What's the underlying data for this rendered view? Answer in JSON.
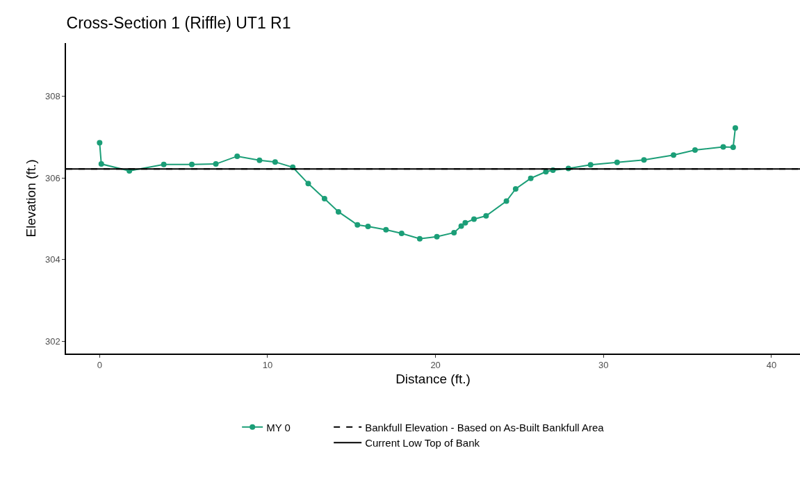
{
  "chart_data": {
    "type": "line",
    "title": "Cross-Section 1 (Riffle) UT1 R1",
    "xlabel": "Distance (ft.)",
    "ylabel": "Elevation (ft.)",
    "x": [
      0,
      0.1,
      1.77,
      3.82,
      5.49,
      6.92,
      8.19,
      9.52,
      10.45,
      11.5,
      12.42,
      13.39,
      14.22,
      15.35,
      15.98,
      17.05,
      17.98,
      19.06,
      20.08,
      21.1,
      21.53,
      21.77,
      22.29,
      23.01,
      24.22,
      24.77,
      25.67,
      26.57,
      26.99,
      27.91,
      29.23,
      30.81,
      32.41,
      34.17,
      35.45,
      37.13,
      37.72,
      37.85
    ],
    "series": [
      {
        "name": "MY 0",
        "color": "#1b9e77",
        "values": [
          306.86,
          306.34,
          306.17,
          306.33,
          306.33,
          306.34,
          306.53,
          306.43,
          306.39,
          306.26,
          305.86,
          305.49,
          305.17,
          304.85,
          304.81,
          304.73,
          304.64,
          304.51,
          304.56,
          304.66,
          304.82,
          304.9,
          304.99,
          305.07,
          305.43,
          305.73,
          305.99,
          306.15,
          306.19,
          306.23,
          306.32,
          306.38,
          306.44,
          306.56,
          306.68,
          306.76,
          306.75,
          307.22
        ]
      }
    ],
    "ref_lines": [
      {
        "axis": "y",
        "value": 306.22,
        "label": "Bankfull Elevation - Based on As-Built Bankfull Area",
        "color": "#000000",
        "line_style": "dashed"
      },
      {
        "axis": "y",
        "value": 306.22,
        "label": "Current Low Top of Bank",
        "color": "#000000",
        "line_style": "solid"
      }
    ],
    "xlim": [
      -2,
      41.7
    ],
    "xticks": [
      0,
      10,
      20,
      30,
      40
    ],
    "ylim": [
      301.7,
      309.3
    ],
    "yticks": [
      302,
      304,
      306,
      308
    ],
    "marker": "circle",
    "legend": "bottom"
  }
}
